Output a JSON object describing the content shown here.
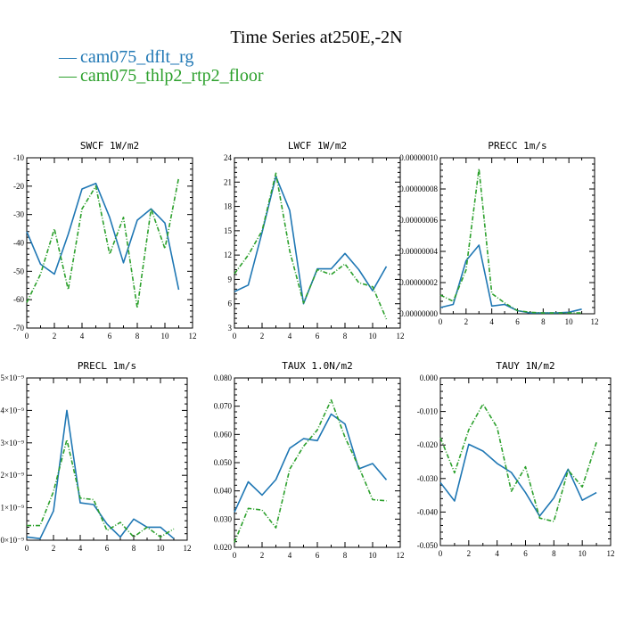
{
  "figure": {
    "title": "Time Series at250E,-2N",
    "legend": [
      {
        "name": "cam075_dflt_rg",
        "color": "#1f77b4"
      },
      {
        "name": "cam075_thlp2_rtp2_floor",
        "color": "#2ca02c"
      }
    ]
  },
  "chart_data": [
    {
      "type": "line",
      "title": "SWCF   1W/m2",
      "x": [
        0,
        1,
        2,
        3,
        4,
        5,
        6,
        7,
        8,
        9,
        10,
        11
      ],
      "xlim": [
        0,
        12
      ],
      "xticks": [
        0,
        2,
        4,
        6,
        8,
        10,
        12
      ],
      "xtick_labels": [
        "0",
        "2",
        "4",
        "6",
        "8",
        "10",
        "12"
      ],
      "ylim": [
        -70,
        -10
      ],
      "yticks": [
        -70,
        -60,
        -50,
        -40,
        -30,
        -20,
        -10
      ],
      "ytick_labels": [
        "-70",
        "-60",
        "-50",
        "-40",
        "-30",
        "-20",
        "-10"
      ],
      "series": [
        {
          "name": "cam075_dflt_rg",
          "values": [
            -36,
            -47.5,
            -51,
            -37,
            -21,
            -19,
            -31,
            -47,
            -32,
            -28,
            -33,
            -56.5
          ]
        },
        {
          "name": "cam075_thlp2_rtp2_floor",
          "values": [
            -61,
            -51,
            -35,
            -56.5,
            -28,
            -20,
            -44,
            -31,
            -63,
            -28,
            -42,
            -17
          ]
        }
      ]
    },
    {
      "type": "line",
      "title": "LWCF   1W/m2",
      "x": [
        0,
        1,
        2,
        3,
        4,
        5,
        6,
        7,
        8,
        9,
        10,
        11
      ],
      "xlim": [
        0,
        12
      ],
      "xticks": [
        0,
        2,
        4,
        6,
        8,
        10,
        12
      ],
      "xtick_labels": [
        "0",
        "2",
        "4",
        "6",
        "8",
        "10",
        "12"
      ],
      "ylim": [
        3,
        24
      ],
      "yticks": [
        3,
        6,
        9,
        12,
        15,
        18,
        21,
        24
      ],
      "ytick_labels": [
        "3",
        "6",
        "9",
        "12",
        "15",
        "18",
        "21",
        "24"
      ],
      "series": [
        {
          "name": "cam075_dflt_rg",
          "values": [
            7.5,
            8.3,
            14.8,
            21.7,
            17.5,
            6,
            10.3,
            10.3,
            12.2,
            10.2,
            7.6,
            10.6
          ]
        },
        {
          "name": "cam075_thlp2_rtp2_floor",
          "values": [
            9.7,
            12,
            15,
            22.1,
            12.5,
            6.1,
            10.2,
            9.6,
            10.9,
            8.6,
            8.1,
            4.1
          ]
        }
      ]
    },
    {
      "type": "line",
      "title": "PRECC   1m/s",
      "x": [
        0,
        1,
        2,
        3,
        4,
        5,
        6,
        7,
        8,
        9,
        10,
        11
      ],
      "xlim": [
        0,
        12
      ],
      "xticks": [
        0,
        2,
        4,
        6,
        8,
        10,
        12
      ],
      "xtick_labels": [
        "0",
        "2",
        "4",
        "6",
        "8",
        "10",
        "12"
      ],
      "ylim": [
        0,
        1e-07
      ],
      "yticks": [
        0,
        2e-08,
        4e-08,
        6e-08,
        8e-08,
        1e-07
      ],
      "ytick_labels": [
        "0.00000000",
        "0.00000002",
        "0.00000004",
        "0.00000006",
        "0.00000008",
        "0.00000010"
      ],
      "series": [
        {
          "name": "cam075_dflt_rg",
          "values": [
            4e-09,
            6e-09,
            3.4e-08,
            4.4e-08,
            5e-09,
            6e-09,
            2e-09,
            5e-10,
            5e-10,
            5e-10,
            1e-09,
            3e-09
          ]
        },
        {
          "name": "cam075_thlp2_rtp2_floor",
          "values": [
            1.2e-08,
            8e-09,
            2.8e-08,
            9.3e-08,
            1.3e-08,
            7e-09,
            2e-09,
            1e-09,
            5e-10,
            5e-10,
            5e-10,
            5e-10
          ]
        }
      ]
    },
    {
      "type": "line",
      "title": "PRECL   1m/s",
      "x": [
        0,
        1,
        2,
        3,
        4,
        5,
        6,
        7,
        8,
        9,
        10,
        11
      ],
      "xlim": [
        0,
        12
      ],
      "xticks": [
        0,
        2,
        4,
        6,
        8,
        10,
        12
      ],
      "xtick_labels": [
        "0",
        "2",
        "4",
        "6",
        "8",
        "10",
        "12"
      ],
      "ylim": [
        0,
        5
      ],
      "yticks": [
        0,
        1,
        2,
        3,
        4,
        5
      ],
      "ytick_labels": [
        "0×10⁻⁹",
        "1×10⁻⁹",
        "2×10⁻⁹",
        "3×10⁻⁹",
        "4×10⁻⁹",
        "5×10⁻⁹"
      ],
      "series": [
        {
          "name": "cam075_dflt_rg",
          "values": [
            0.1,
            0.05,
            0.9,
            4.0,
            1.15,
            1.1,
            0.5,
            0.1,
            0.65,
            0.4,
            0.4,
            0.05
          ]
        },
        {
          "name": "cam075_thlp2_rtp2_floor",
          "values": [
            0.45,
            0.45,
            1.5,
            3.1,
            1.3,
            1.25,
            0.3,
            0.55,
            0.1,
            0.4,
            0.1,
            0.35
          ]
        }
      ]
    },
    {
      "type": "line",
      "title": "TAUX   1.0N/m2",
      "x": [
        0,
        1,
        2,
        3,
        4,
        5,
        6,
        7,
        8,
        9,
        10,
        11
      ],
      "xlim": [
        0,
        12
      ],
      "xticks": [
        0,
        2,
        4,
        6,
        8,
        10,
        12
      ],
      "xtick_labels": [
        "0",
        "2",
        "4",
        "6",
        "8",
        "10",
        "12"
      ],
      "ylim": [
        0.02,
        0.08
      ],
      "yticks": [
        0.02,
        0.03,
        0.04,
        0.05,
        0.06,
        0.07,
        0.08
      ],
      "ytick_labels": [
        "0.020",
        "0.030",
        "0.040",
        "0.050",
        "0.060",
        "0.070",
        "0.080"
      ],
      "series": [
        {
          "name": "cam075_dflt_rg",
          "values": [
            0.0325,
            0.0432,
            0.0385,
            0.044,
            0.0551,
            0.0585,
            0.0578,
            0.0672,
            0.0637,
            0.0478,
            0.0497,
            0.0439
          ]
        },
        {
          "name": "cam075_thlp2_rtp2_floor",
          "values": [
            0.0217,
            0.0338,
            0.0332,
            0.0269,
            0.0477,
            0.0558,
            0.0616,
            0.0722,
            0.059,
            0.0485,
            0.0369,
            0.0365
          ]
        }
      ]
    },
    {
      "type": "line",
      "title": "TAUY   1N/m2",
      "x": [
        0,
        1,
        2,
        3,
        4,
        5,
        6,
        7,
        8,
        9,
        10,
        11
      ],
      "xlim": [
        0,
        12
      ],
      "xticks": [
        0,
        2,
        4,
        6,
        8,
        10,
        12
      ],
      "xtick_labels": [
        "0",
        "2",
        "4",
        "6",
        "8",
        "10",
        "12"
      ],
      "ylim": [
        -0.05,
        0
      ],
      "yticks": [
        -0.05,
        -0.04,
        -0.03,
        -0.02,
        -0.01,
        0
      ],
      "ytick_labels": [
        "-0.050",
        "-0.040",
        "-0.030",
        "-0.020",
        "-0.010",
        "0.000"
      ],
      "series": [
        {
          "name": "cam075_dflt_rg",
          "values": [
            -0.0312,
            -0.0367,
            -0.0198,
            -0.0218,
            -0.0255,
            -0.0282,
            -0.0342,
            -0.0412,
            -0.0358,
            -0.0272,
            -0.0365,
            -0.0342
          ]
        },
        {
          "name": "cam075_thlp2_rtp2_floor",
          "values": [
            -0.0178,
            -0.0283,
            -0.0155,
            -0.0078,
            -0.0148,
            -0.0338,
            -0.0265,
            -0.0418,
            -0.0428,
            -0.0275,
            -0.0325,
            -0.0192
          ]
        }
      ]
    }
  ]
}
